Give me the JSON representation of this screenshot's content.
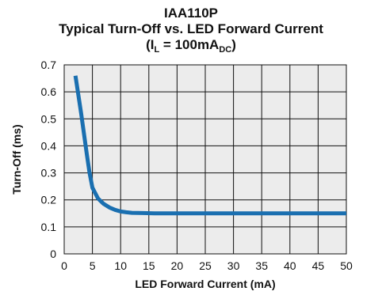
{
  "chart_data": {
    "type": "line",
    "title": "IAA110P",
    "subtitle": "Typical Turn-Off vs. LED Forward Current",
    "condition": {
      "prefix": "(I",
      "sub1": "L",
      "mid": " = 100mA",
      "sub2": "DC",
      "suffix": ")"
    },
    "xlabel": "LED Forward Current (mA)",
    "ylabel": "Turn-Off (ms)",
    "xlim": [
      0,
      50
    ],
    "ylim": [
      0,
      0.7
    ],
    "xticks": [
      "0",
      "5",
      "10",
      "15",
      "20",
      "25",
      "30",
      "35",
      "40",
      "45",
      "50"
    ],
    "yticks": [
      "0",
      "0.1",
      "0.2",
      "0.3",
      "0.4",
      "0.5",
      "0.6",
      "0.7"
    ],
    "grid": true,
    "series": [
      {
        "color": "#1a6fb0",
        "x": [
          2,
          3,
          4,
          4.5,
          5,
          6,
          7,
          8,
          9,
          10,
          11,
          12,
          14,
          16,
          20,
          30,
          40,
          50
        ],
        "y": [
          0.66,
          0.52,
          0.37,
          0.3,
          0.245,
          0.205,
          0.185,
          0.172,
          0.163,
          0.157,
          0.154,
          0.152,
          0.151,
          0.15,
          0.15,
          0.15,
          0.15,
          0.15
        ]
      }
    ]
  }
}
